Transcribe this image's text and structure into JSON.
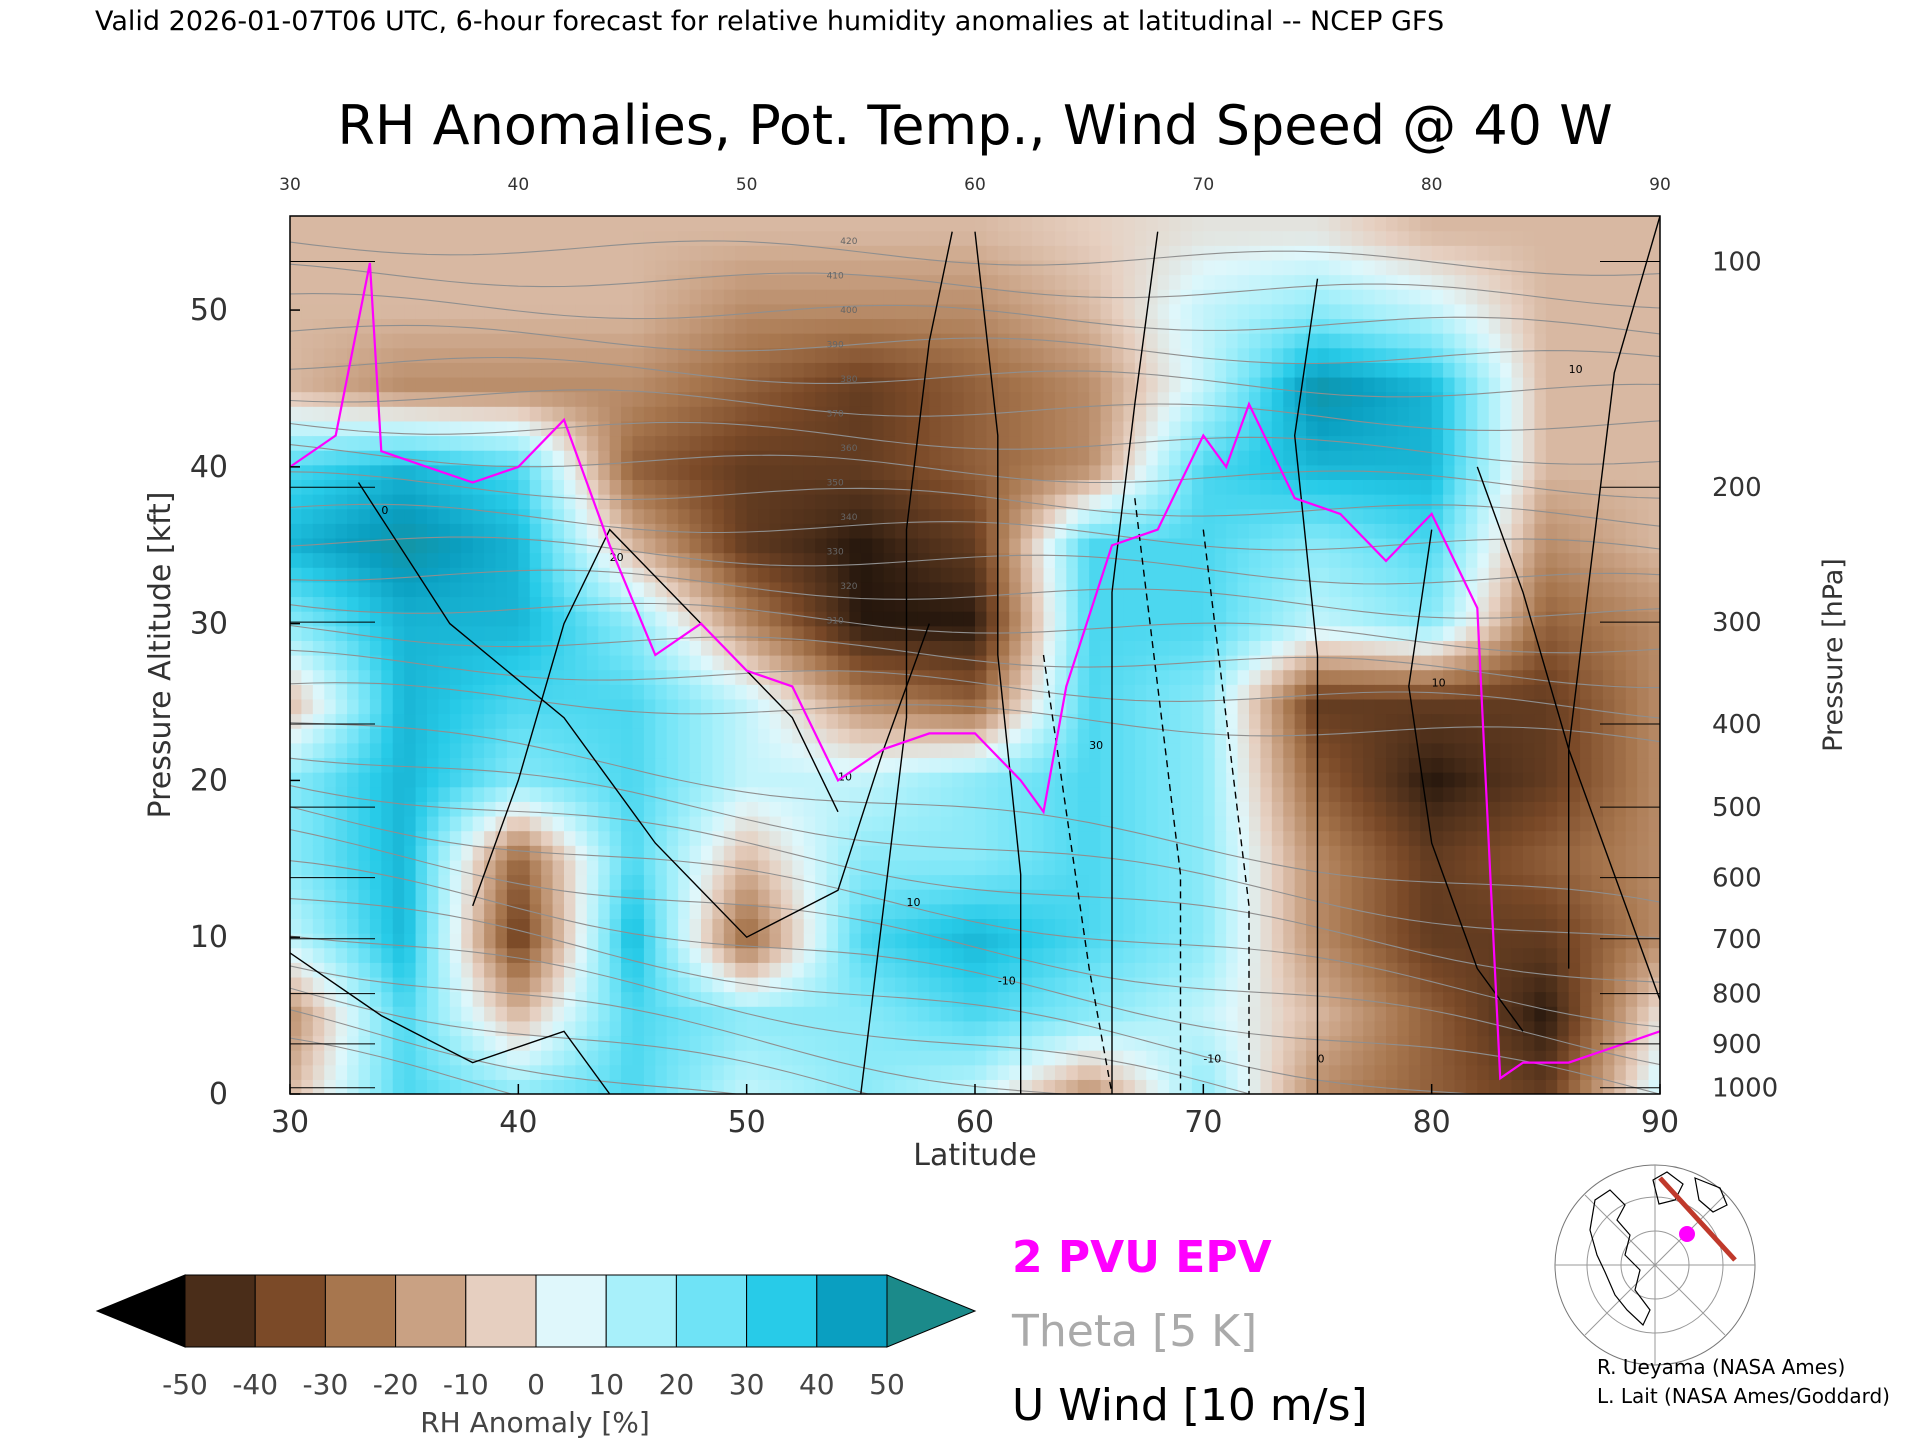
{
  "header": {
    "valid_line": "Valid 2026-01-07T06 UTC, 6-hour forecast for relative humidity anomalies at latitudinal -- NCEP GFS"
  },
  "chart_data": {
    "type": "heatmap",
    "title": "RH Anomalies, Pot. Temp., Wind Speed @ 40 W",
    "xlabel": "Latitude",
    "ylabel": "Pressure Altitude [kft]",
    "y2label": "Pressure [hPa]",
    "xlim": [
      30,
      90
    ],
    "ylim": [
      0,
      56
    ],
    "x_ticks": [
      "30",
      "40",
      "50",
      "60",
      "70",
      "80",
      "90"
    ],
    "x_ticks_top": [
      "30",
      "40",
      "50",
      "60",
      "70",
      "80",
      "90"
    ],
    "y_ticks": [
      {
        "v": 0,
        "label": "0"
      },
      {
        "v": 10,
        "label": "10"
      },
      {
        "v": 20,
        "label": "20"
      },
      {
        "v": 30,
        "label": "30"
      },
      {
        "v": 40,
        "label": "40"
      },
      {
        "v": 50,
        "label": "50"
      }
    ],
    "pressure_ticks": [
      {
        "kft": 53.1,
        "label": "100"
      },
      {
        "kft": 38.7,
        "label": "200"
      },
      {
        "kft": 30.1,
        "label": "300"
      },
      {
        "kft": 23.6,
        "label": "400"
      },
      {
        "kft": 18.3,
        "label": "500"
      },
      {
        "kft": 13.8,
        "label": "600"
      },
      {
        "kft": 9.9,
        "label": "700"
      },
      {
        "kft": 6.4,
        "label": "800"
      },
      {
        "kft": 3.2,
        "label": "900"
      },
      {
        "kft": 0.4,
        "label": "1000"
      }
    ],
    "rh_anomaly_field": {
      "units": "%",
      "lat": [
        30,
        35,
        40,
        45,
        50,
        55,
        60,
        65,
        70,
        75,
        80,
        85,
        90
      ],
      "kft": [
        0,
        5,
        10,
        15,
        20,
        25,
        30,
        35,
        40,
        45,
        50,
        55
      ],
      "values": [
        [
          -10,
          30,
          20,
          30,
          10,
          20,
          10,
          -20,
          20,
          -20,
          -30,
          -40,
          10
        ],
        [
          -20,
          30,
          -10,
          30,
          20,
          20,
          30,
          20,
          10,
          -10,
          -30,
          -50,
          0
        ],
        [
          10,
          40,
          -40,
          40,
          -30,
          30,
          40,
          30,
          20,
          -20,
          -40,
          -40,
          -20
        ],
        [
          20,
          40,
          -30,
          30,
          -10,
          20,
          20,
          30,
          20,
          -20,
          -40,
          -30,
          -20
        ],
        [
          20,
          40,
          20,
          30,
          10,
          10,
          20,
          30,
          20,
          -30,
          -50,
          -40,
          -20
        ],
        [
          -10,
          40,
          30,
          30,
          10,
          -20,
          -30,
          30,
          20,
          -40,
          -40,
          -40,
          -20
        ],
        [
          20,
          40,
          40,
          20,
          -20,
          -50,
          -50,
          30,
          30,
          10,
          20,
          -30,
          -20
        ],
        [
          40,
          50,
          40,
          -10,
          -40,
          -50,
          -40,
          30,
          30,
          20,
          30,
          -20,
          -10
        ],
        [
          30,
          40,
          30,
          -30,
          -40,
          -40,
          -30,
          -20,
          30,
          40,
          40,
          -10,
          -10
        ],
        [
          -10,
          -20,
          -20,
          -20,
          -30,
          -40,
          -30,
          -20,
          10,
          50,
          40,
          -10,
          -10
        ],
        [
          -10,
          -10,
          -10,
          -10,
          -20,
          -20,
          -20,
          -10,
          10,
          20,
          10,
          -10,
          -10
        ],
        [
          -10,
          -10,
          -10,
          -10,
          -10,
          -10,
          -10,
          -5,
          0,
          0,
          -10,
          -10,
          -10
        ]
      ]
    },
    "epv_2pvu_kft": {
      "lat": [
        30,
        32,
        33.5,
        34,
        36,
        38,
        40,
        42,
        44,
        46,
        48,
        50,
        52,
        54,
        56,
        58,
        60,
        62,
        63,
        64,
        66,
        68,
        70,
        71,
        72,
        74,
        76,
        78,
        80,
        81,
        82,
        83,
        84,
        86,
        88,
        90
      ],
      "kft": [
        40,
        42,
        53,
        41,
        40,
        39,
        40,
        43,
        35,
        28,
        30,
        27,
        26,
        20,
        22,
        23,
        23,
        20,
        18,
        26,
        35,
        36,
        42,
        40,
        44,
        38,
        37,
        34,
        37,
        34,
        31,
        1,
        2,
        2,
        3,
        4
      ]
    },
    "theta_levels_K": [
      310,
      320,
      330,
      340,
      350,
      360,
      370,
      380,
      390,
      400,
      410,
      420
    ],
    "u_wind_contour_labels": [
      "-10",
      "0",
      "10",
      "20",
      "30"
    ],
    "legend": [
      {
        "label": "2 PVU EPV",
        "color": "#ff00ff"
      },
      {
        "label": "Theta [5 K]",
        "color": "#999999"
      },
      {
        "label": "U Wind [10 m/s]",
        "color": "#000000"
      }
    ],
    "colorbar": {
      "label": "RH Anomaly [%]",
      "ticks": [
        "-50",
        "-40",
        "-30",
        "-20",
        "-10",
        "0",
        "10",
        "20",
        "30",
        "40",
        "50"
      ],
      "colors": [
        "#000000",
        "#4a2d19",
        "#7b4a28",
        "#a7764e",
        "#c9a183",
        "#e6cfc0",
        "#dff7fb",
        "#a8f0fa",
        "#6fe3f6",
        "#28cbe8",
        "#0a9fc1",
        "#1b8a8a"
      ]
    }
  },
  "credits": {
    "line1": "R. Ueyama (NASA Ames)",
    "line2": "L. Lait (NASA Ames/Goddard)"
  }
}
